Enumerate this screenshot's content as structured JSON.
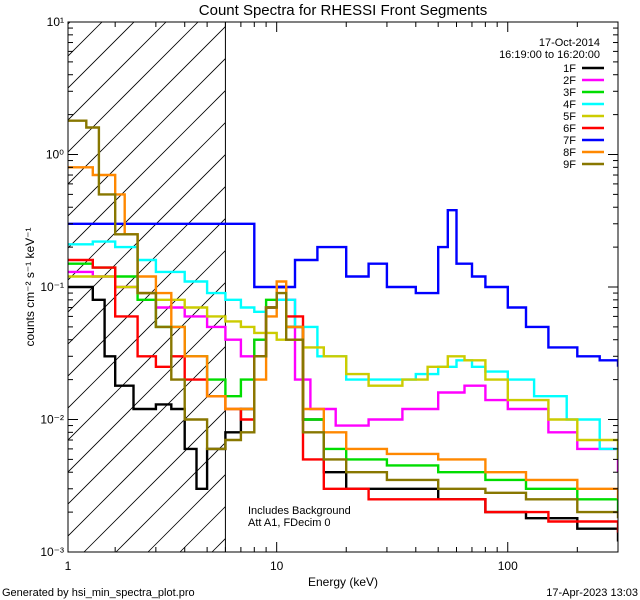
{
  "chart_data": {
    "type": "line",
    "title": "Count Spectra for RHESSI Front Segments",
    "xlabel": "Energy (keV)",
    "ylabel": "counts cm⁻² s⁻¹ keV⁻¹",
    "xscale": "log",
    "yscale": "log",
    "xlim": [
      1.25,
      300
    ],
    "ylim": [
      0.001,
      10
    ],
    "x_ticks": [
      {
        "value": 1,
        "label": "1"
      },
      {
        "value": 10,
        "label": "10"
      },
      {
        "value": 100,
        "label": "100"
      }
    ],
    "y_ticks": [
      {
        "value": 0.001,
        "label": "10⁻³"
      },
      {
        "value": 0.01,
        "label": "10⁻²"
      },
      {
        "value": 0.1,
        "label": "10⁻¹"
      },
      {
        "value": 1,
        "label": "10⁰"
      },
      {
        "value": 10,
        "label": "10¹"
      }
    ],
    "date": "17-Oct-2014",
    "time_range": "16:19:00 to 16:20:00",
    "hatched_region": {
      "x_from": 1.25,
      "x_to": 6
    },
    "annotation_lines": [
      "Includes Background",
      "Att A1, FDecim 0"
    ],
    "series": [
      {
        "name": "1F",
        "color": "#000000",
        "points": [
          [
            1.25,
            0.1
          ],
          [
            1.6,
            0.08
          ],
          [
            1.8,
            0.03
          ],
          [
            2.0,
            0.018
          ],
          [
            2.4,
            0.012
          ],
          [
            3,
            0.013
          ],
          [
            3.5,
            0.012
          ],
          [
            4,
            0.006
          ],
          [
            4.5,
            0.003
          ],
          [
            5,
            0.006
          ],
          [
            6,
            0.008
          ],
          [
            7,
            0.012
          ],
          [
            8,
            0.03
          ],
          [
            9,
            0.07
          ],
          [
            10,
            0.1
          ],
          [
            11,
            0.05
          ],
          [
            13,
            0.01
          ],
          [
            16,
            0.004
          ],
          [
            20,
            0.003
          ],
          [
            30,
            0.003
          ],
          [
            50,
            0.0025
          ],
          [
            80,
            0.002
          ],
          [
            120,
            0.0018
          ],
          [
            200,
            0.0015
          ],
          [
            300,
            0.0012
          ]
        ]
      },
      {
        "name": "2F",
        "color": "#ff00ff",
        "points": [
          [
            1.25,
            0.13
          ],
          [
            1.6,
            0.12
          ],
          [
            2.0,
            0.1
          ],
          [
            2.5,
            0.09
          ],
          [
            3,
            0.07
          ],
          [
            4,
            0.06
          ],
          [
            5,
            0.05
          ],
          [
            6,
            0.04
          ],
          [
            7,
            0.03
          ],
          [
            8,
            0.04
          ],
          [
            9,
            0.07
          ],
          [
            10,
            0.08
          ],
          [
            12,
            0.02
          ],
          [
            14,
            0.012
          ],
          [
            18,
            0.009
          ],
          [
            25,
            0.01
          ],
          [
            35,
            0.012
          ],
          [
            50,
            0.016
          ],
          [
            65,
            0.018
          ],
          [
            80,
            0.014
          ],
          [
            100,
            0.012
          ],
          [
            150,
            0.008
          ],
          [
            200,
            0.006
          ],
          [
            300,
            0.004
          ]
        ]
      },
      {
        "name": "3F",
        "color": "#00dd00",
        "points": [
          [
            1.25,
            0.15
          ],
          [
            1.6,
            0.14
          ],
          [
            2.0,
            0.12
          ],
          [
            2.5,
            0.08
          ],
          [
            3,
            0.05
          ],
          [
            4,
            0.03
          ],
          [
            5,
            0.02
          ],
          [
            6,
            0.015
          ],
          [
            7,
            0.02
          ],
          [
            8,
            0.04
          ],
          [
            9,
            0.08
          ],
          [
            10,
            0.1
          ],
          [
            11,
            0.05
          ],
          [
            13,
            0.01
          ],
          [
            16,
            0.006
          ],
          [
            20,
            0.005
          ],
          [
            30,
            0.0045
          ],
          [
            50,
            0.004
          ],
          [
            80,
            0.0035
          ],
          [
            120,
            0.003
          ],
          [
            200,
            0.0025
          ],
          [
            300,
            0.002
          ]
        ]
      },
      {
        "name": "4F",
        "color": "#00ffff",
        "points": [
          [
            1.25,
            0.21
          ],
          [
            1.6,
            0.22
          ],
          [
            2.0,
            0.2
          ],
          [
            2.5,
            0.16
          ],
          [
            3,
            0.13
          ],
          [
            4,
            0.11
          ],
          [
            5,
            0.09
          ],
          [
            6,
            0.08
          ],
          [
            7,
            0.07
          ],
          [
            8,
            0.065
          ],
          [
            9,
            0.07
          ],
          [
            10,
            0.08
          ],
          [
            12,
            0.05
          ],
          [
            15,
            0.03
          ],
          [
            20,
            0.02
          ],
          [
            30,
            0.02
          ],
          [
            40,
            0.022
          ],
          [
            50,
            0.025
          ],
          [
            60,
            0.028
          ],
          [
            70,
            0.025
          ],
          [
            80,
            0.023
          ],
          [
            100,
            0.02
          ],
          [
            130,
            0.015
          ],
          [
            180,
            0.01
          ],
          [
            250,
            0.006
          ],
          [
            300,
            0.005
          ]
        ]
      },
      {
        "name": "5F",
        "color": "#cccc00",
        "points": [
          [
            1.25,
            0.12
          ],
          [
            1.6,
            0.12
          ],
          [
            2.0,
            0.1
          ],
          [
            2.5,
            0.09
          ],
          [
            3,
            0.08
          ],
          [
            4,
            0.07
          ],
          [
            5,
            0.06
          ],
          [
            6,
            0.055
          ],
          [
            7,
            0.05
          ],
          [
            8,
            0.045
          ],
          [
            10,
            0.04
          ],
          [
            13,
            0.035
          ],
          [
            16,
            0.03
          ],
          [
            20,
            0.022
          ],
          [
            25,
            0.018
          ],
          [
            35,
            0.02
          ],
          [
            45,
            0.025
          ],
          [
            55,
            0.03
          ],
          [
            65,
            0.028
          ],
          [
            80,
            0.02
          ],
          [
            100,
            0.014
          ],
          [
            150,
            0.01
          ],
          [
            200,
            0.007
          ],
          [
            300,
            0.005
          ]
        ]
      },
      {
        "name": "6F",
        "color": "#ff0000",
        "points": [
          [
            1.25,
            0.16
          ],
          [
            1.6,
            0.14
          ],
          [
            2.0,
            0.06
          ],
          [
            2.5,
            0.03
          ],
          [
            3,
            0.025
          ],
          [
            3.5,
            0.03
          ],
          [
            4,
            0.02
          ],
          [
            5,
            0.015
          ],
          [
            6,
            0.012
          ],
          [
            7,
            0.01
          ],
          [
            8,
            0.03
          ],
          [
            9,
            0.07
          ],
          [
            10,
            0.1
          ],
          [
            11,
            0.06
          ],
          [
            13,
            0.005
          ],
          [
            16,
            0.003
          ],
          [
            25,
            0.0025
          ],
          [
            40,
            0.0025
          ],
          [
            80,
            0.002
          ],
          [
            150,
            0.0017
          ],
          [
            300,
            0.0014
          ]
        ]
      },
      {
        "name": "7F",
        "color": "#0000ff",
        "points": [
          [
            1.25,
            0.3
          ],
          [
            1.4,
            0.3
          ],
          [
            8,
            0.1
          ],
          [
            12,
            0.16
          ],
          [
            15,
            0.2
          ],
          [
            20,
            0.12
          ],
          [
            25,
            0.15
          ],
          [
            30,
            0.1
          ],
          [
            40,
            0.09
          ],
          [
            50,
            0.2
          ],
          [
            55,
            0.38
          ],
          [
            60,
            0.15
          ],
          [
            70,
            0.12
          ],
          [
            80,
            0.1
          ],
          [
            100,
            0.07
          ],
          [
            120,
            0.05
          ],
          [
            150,
            0.035
          ],
          [
            200,
            0.03
          ],
          [
            250,
            0.028
          ],
          [
            300,
            0.025
          ]
        ]
      },
      {
        "name": "8F",
        "color": "#ff8800",
        "points": [
          [
            1.25,
            0.8
          ],
          [
            1.6,
            0.7
          ],
          [
            2.0,
            0.5
          ],
          [
            2.2,
            0.25
          ],
          [
            2.5,
            0.12
          ],
          [
            3,
            0.09
          ],
          [
            3.5,
            0.05
          ],
          [
            4,
            0.03
          ],
          [
            5,
            0.015
          ],
          [
            6,
            0.012
          ],
          [
            7,
            0.012
          ],
          [
            8,
            0.02
          ],
          [
            9,
            0.06
          ],
          [
            10,
            0.11
          ],
          [
            11,
            0.05
          ],
          [
            13,
            0.012
          ],
          [
            16,
            0.008
          ],
          [
            20,
            0.006
          ],
          [
            30,
            0.0055
          ],
          [
            50,
            0.005
          ],
          [
            80,
            0.004
          ],
          [
            120,
            0.0035
          ],
          [
            200,
            0.003
          ],
          [
            300,
            0.0025
          ]
        ]
      },
      {
        "name": "9F",
        "color": "#887700",
        "points": [
          [
            1.25,
            1.8
          ],
          [
            1.5,
            1.6
          ],
          [
            1.7,
            0.5
          ],
          [
            2.0,
            0.25
          ],
          [
            2.5,
            0.09
          ],
          [
            3,
            0.05
          ],
          [
            3.5,
            0.02
          ],
          [
            4,
            0.01
          ],
          [
            5,
            0.006
          ],
          [
            6,
            0.007
          ],
          [
            7,
            0.008
          ],
          [
            8,
            0.03
          ],
          [
            9,
            0.07
          ],
          [
            10,
            0.09
          ],
          [
            11,
            0.04
          ],
          [
            13,
            0.008
          ],
          [
            16,
            0.005
          ],
          [
            20,
            0.004
          ],
          [
            30,
            0.0035
          ],
          [
            50,
            0.003
          ],
          [
            80,
            0.0028
          ],
          [
            120,
            0.0025
          ],
          [
            200,
            0.002
          ],
          [
            300,
            0.0018
          ]
        ]
      }
    ]
  },
  "footer": {
    "left": "Generated by  hsi_min_spectra_plot.pro",
    "right": "17-Apr-2023 13:03"
  }
}
